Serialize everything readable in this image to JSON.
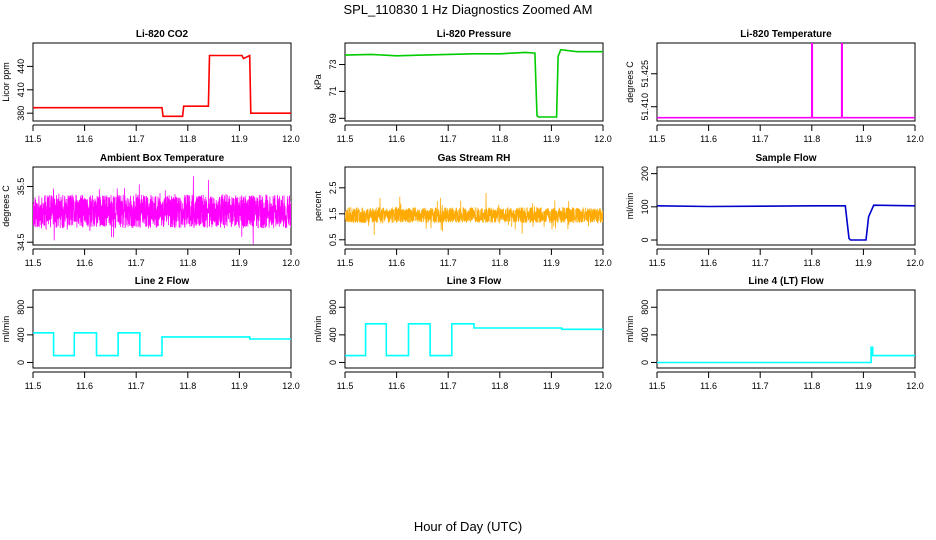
{
  "figure": {
    "title": "SPL_110830  1 Hz Diagnostics Zoomed AM",
    "xlabel": "Hour of Day (UTC)"
  },
  "chart_data": [
    {
      "type": "line",
      "title": "Li-820 CO2",
      "ylabel": "Licor ppm",
      "color": "#ff0000",
      "xlim": [
        11.5,
        12.0
      ],
      "ylim": [
        370,
        470
      ],
      "xticks": [
        "11.5",
        "11.6",
        "11.7",
        "11.8",
        "11.9",
        "12.0"
      ],
      "yticks": [
        {
          "v": 380,
          "label": "380"
        },
        {
          "v": 410,
          "label": "410"
        },
        {
          "v": 440,
          "label": "440"
        }
      ],
      "series": [
        {
          "x": [
            11.5,
            11.75,
            11.752,
            11.79,
            11.792,
            11.84,
            11.842,
            11.905,
            11.908,
            11.92,
            11.922,
            12.0
          ],
          "y": [
            387,
            387,
            376,
            376,
            389,
            389,
            454,
            454,
            450,
            454,
            380,
            380
          ]
        }
      ]
    },
    {
      "type": "line",
      "title": "Li-820 Pressure",
      "ylabel": "kPa",
      "color": "#00cc00",
      "xlim": [
        11.5,
        12.0
      ],
      "ylim": [
        68.8,
        74.6
      ],
      "xticks": [
        "11.5",
        "11.6",
        "11.7",
        "11.8",
        "11.9",
        "12.0"
      ],
      "yticks": [
        {
          "v": 69,
          "label": "69"
        },
        {
          "v": 71,
          "label": "71"
        },
        {
          "v": 73,
          "label": "73"
        }
      ],
      "series": [
        {
          "x": [
            11.5,
            11.55,
            11.6,
            11.65,
            11.7,
            11.75,
            11.8,
            11.85,
            11.868,
            11.872,
            11.875,
            11.91,
            11.913,
            11.918,
            11.95,
            12.0
          ],
          "y": [
            73.7,
            73.75,
            73.65,
            73.7,
            73.75,
            73.8,
            73.8,
            73.9,
            73.85,
            69.2,
            69.1,
            69.1,
            73.6,
            74.1,
            73.95,
            73.95
          ]
        }
      ]
    },
    {
      "type": "line",
      "title": "Li-820 Temperature",
      "ylabel": "degrees C",
      "color": "#ff00ff",
      "xlim": [
        11.5,
        12.0
      ],
      "ylim": [
        51.4035,
        51.439
      ],
      "xticks": [
        "11.5",
        "11.6",
        "11.7",
        "11.8",
        "11.9",
        "12.0"
      ],
      "yticks": [
        {
          "v": 51.41,
          "label": "51.410"
        },
        {
          "v": 51.425,
          "label": "51.425"
        }
      ],
      "series": [
        {
          "x": [
            11.5,
            11.8,
            11.8,
            11.8,
            11.801,
            11.801,
            11.858,
            11.858,
            11.859,
            11.859,
            12.0
          ],
          "y": [
            51.405,
            51.405,
            51.415,
            51.439,
            51.439,
            51.405,
            51.405,
            51.439,
            51.439,
            51.405,
            51.405
          ]
        }
      ]
    },
    {
      "type": "line",
      "title": "Ambient Box Temperature",
      "ylabel": "degrees C",
      "color": "#ff00ff",
      "xlim": [
        11.5,
        12.0
      ],
      "ylim": [
        34.45,
        35.85
      ],
      "xticks": [
        "11.5",
        "11.6",
        "11.7",
        "11.8",
        "11.9",
        "12.0"
      ],
      "yticks": [
        {
          "v": 34.5,
          "label": "34.5"
        },
        {
          "v": 35.5,
          "label": "35.5"
        }
      ],
      "noise": {
        "base": 35.05,
        "amp": 0.3,
        "spikes": 0.4,
        "seed": 11,
        "period": 0.00028
      },
      "series": []
    },
    {
      "type": "line",
      "title": "Gas Stream RH",
      "ylabel": "percent",
      "color": "#ffaa00",
      "xlim": [
        11.5,
        12.0
      ],
      "ylim": [
        0.3,
        3.3
      ],
      "xticks": [
        "11.5",
        "11.6",
        "11.7",
        "11.8",
        "11.9",
        "12.0"
      ],
      "yticks": [
        {
          "v": 0.5,
          "label": "0.5"
        },
        {
          "v": 1.5,
          "label": "1.5"
        },
        {
          "v": 2.5,
          "label": "2.5"
        }
      ],
      "noise": {
        "base": 1.45,
        "amp": 0.3,
        "spikes": 0.6,
        "seed": 23,
        "period": 0.00028
      },
      "series": []
    },
    {
      "type": "line",
      "title": "Sample Flow",
      "ylabel": "ml/min",
      "color": "#0000cc",
      "xlim": [
        11.5,
        12.0
      ],
      "ylim": [
        -15,
        220
      ],
      "xticks": [
        "11.5",
        "11.6",
        "11.7",
        "11.8",
        "11.9",
        "12.0"
      ],
      "yticks": [
        {
          "v": 0,
          "label": "0"
        },
        {
          "v": 100,
          "label": "100"
        },
        {
          "v": 200,
          "label": "200"
        }
      ],
      "series": [
        {
          "x": [
            11.5,
            11.6,
            11.7,
            11.8,
            11.865,
            11.872,
            11.875,
            11.905,
            11.91,
            11.92,
            12.0
          ],
          "y": [
            103,
            101,
            102,
            103,
            103,
            5,
            0,
            0,
            70,
            105,
            103
          ]
        }
      ]
    },
    {
      "type": "line",
      "title": "Line 2 Flow",
      "ylabel": "ml/min",
      "color": "#00ffff",
      "xlim": [
        11.5,
        12.0
      ],
      "ylim": [
        -80,
        1050
      ],
      "xticks": [
        "11.5",
        "11.6",
        "11.7",
        "11.8",
        "11.9",
        "12.0"
      ],
      "yticks": [
        {
          "v": 0,
          "label": "0"
        },
        {
          "v": 400,
          "label": "400"
        },
        {
          "v": 800,
          "label": "800"
        }
      ],
      "series": [
        {
          "x": [
            11.5,
            11.54,
            11.54,
            11.58,
            11.58,
            11.623,
            11.623,
            11.665,
            11.665,
            11.707,
            11.707,
            11.75,
            11.75,
            11.92,
            11.92,
            12.0
          ],
          "y": [
            430,
            430,
            100,
            100,
            430,
            430,
            100,
            100,
            430,
            430,
            100,
            100,
            370,
            370,
            340,
            340
          ]
        }
      ]
    },
    {
      "type": "line",
      "title": "Line 3 Flow",
      "ylabel": "ml/min",
      "color": "#00ffff",
      "xlim": [
        11.5,
        12.0
      ],
      "ylim": [
        -80,
        1050
      ],
      "xticks": [
        "11.5",
        "11.6",
        "11.7",
        "11.8",
        "11.9",
        "12.0"
      ],
      "yticks": [
        {
          "v": 0,
          "label": "0"
        },
        {
          "v": 400,
          "label": "400"
        },
        {
          "v": 800,
          "label": "800"
        }
      ],
      "series": [
        {
          "x": [
            11.5,
            11.54,
            11.54,
            11.58,
            11.58,
            11.623,
            11.623,
            11.665,
            11.665,
            11.707,
            11.707,
            11.75,
            11.75,
            11.92,
            11.92,
            12.0
          ],
          "y": [
            100,
            100,
            560,
            560,
            100,
            100,
            560,
            560,
            100,
            100,
            560,
            560,
            500,
            500,
            480,
            480
          ]
        }
      ]
    },
    {
      "type": "line",
      "title": "Line 4 (LT) Flow",
      "ylabel": "ml/min",
      "color": "#00ffff",
      "xlim": [
        11.5,
        12.0
      ],
      "ylim": [
        -80,
        1050
      ],
      "xticks": [
        "11.5",
        "11.6",
        "11.7",
        "11.8",
        "11.9",
        "12.0"
      ],
      "yticks": [
        {
          "v": 0,
          "label": "0"
        },
        {
          "v": 400,
          "label": "400"
        },
        {
          "v": 800,
          "label": "800"
        }
      ],
      "series": [
        {
          "x": [
            11.5,
            11.915,
            11.915,
            11.918,
            11.918,
            12.0
          ],
          "y": [
            0,
            0,
            220,
            220,
            100,
            100
          ]
        }
      ]
    }
  ]
}
